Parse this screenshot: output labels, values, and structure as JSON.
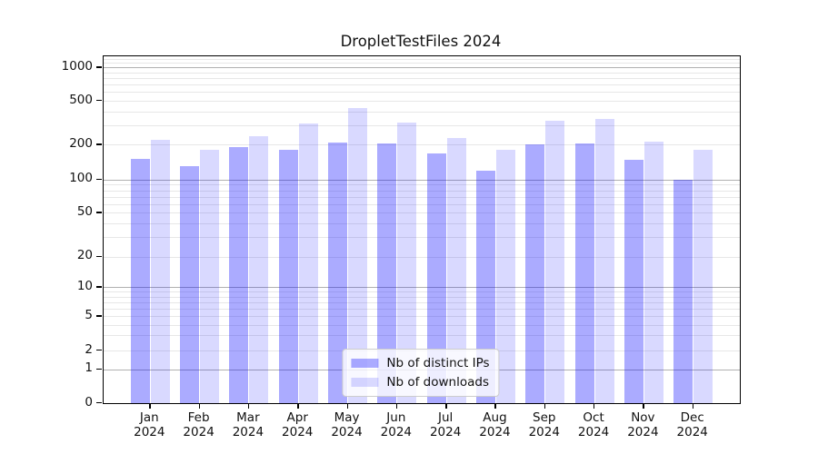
{
  "chart_data": {
    "type": "bar",
    "title": "DropletTestFiles 2024",
    "categories": [
      "Jan",
      "Feb",
      "Mar",
      "Apr",
      "May",
      "Jun",
      "Jul",
      "Aug",
      "Sep",
      "Oct",
      "Nov",
      "Dec"
    ],
    "category_year": "2024",
    "series": [
      {
        "name": "Nb of distinct IPs",
        "color": "rgba(0,0,255,0.33)",
        "values": [
          150,
          130,
          189,
          179,
          210,
          204,
          168,
          119,
          202,
          204,
          148,
          100
        ]
      },
      {
        "name": "Nb of downloads",
        "color": "rgba(0,0,255,0.15)",
        "values": [
          221,
          182,
          240,
          310,
          428,
          315,
          229,
          180,
          330,
          345,
          214,
          179
        ]
      }
    ],
    "yscale": "symlog",
    "yticks": [
      0,
      1,
      2,
      5,
      10,
      20,
      50,
      100,
      200,
      500,
      1000
    ],
    "ytick_labels": [
      "0",
      "1",
      "2",
      "5",
      "10",
      "20",
      "50",
      "100",
      "200",
      "500",
      "1000"
    ],
    "ylim": [
      0,
      1258
    ],
    "grid": true,
    "legend_position": "lower center",
    "axis_color": "#000000",
    "major_grid_color": "#b0b0b0",
    "minor_grid_color": "#e7e7e7"
  }
}
